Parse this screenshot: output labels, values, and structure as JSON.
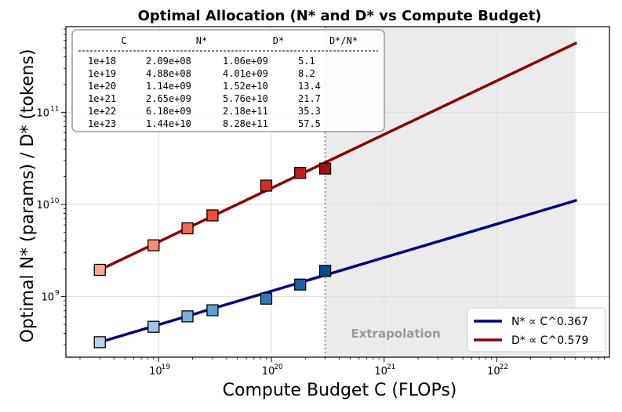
{
  "chart_data": {
    "type": "line",
    "title": "Optimal Allocation (N* and D* vs Compute Budget)",
    "xlabel": "Compute Budget C (FLOPs)",
    "ylabel": "Optimal N* (params) / D* (tokens)",
    "x_scale": "log",
    "y_scale": "log",
    "xlim": [
      1.5e+18,
      1e+23
    ],
    "ylim": [
      220000000.0,
      850000000000.0
    ],
    "x_ticks": [
      1e+19,
      1e+20,
      1e+21,
      1e+22
    ],
    "x_tick_labels": [
      {
        "base": "10",
        "exp": "19"
      },
      {
        "base": "10",
        "exp": "20"
      },
      {
        "base": "10",
        "exp": "21"
      },
      {
        "base": "10",
        "exp": "22"
      }
    ],
    "y_ticks": [
      1000000000.0,
      10000000000.0,
      100000000000.0
    ],
    "y_tick_labels": [
      {
        "base": "10",
        "exp": "9"
      },
      {
        "base": "10",
        "exp": "10"
      },
      {
        "base": "10",
        "exp": "11"
      }
    ],
    "grid": true,
    "legend_position": "bottom-right",
    "extrapolation_region": {
      "x_start": 3e+20,
      "x_end": 5e+22,
      "label": "Extrapolation"
    },
    "series": [
      {
        "name": "N* ∝ C^0.367",
        "color": "#000080",
        "fit_line": {
          "x": [
            3e+18,
            5e+22
          ],
          "y": [
            320000000.0,
            11000000000.0
          ]
        },
        "points": {
          "x": [
            3e+18,
            9e+18,
            1.8e+19,
            3e+19,
            9e+19,
            1.8e+20,
            3e+20
          ],
          "y": [
            320000000.0,
            470000000.0,
            610000000.0,
            710000000.0,
            950000000.0,
            1350000000.0,
            1900000000.0
          ],
          "colors": [
            "#b5d1e8",
            "#9ac7e3",
            "#78b2dc",
            "#5c9fd0",
            "#2f79ba",
            "#1d5fa6",
            "#0a4a90"
          ]
        }
      },
      {
        "name": "D* ∝ C^0.579",
        "color": "#8b0000",
        "fit_line": {
          "x": [
            3e+18,
            5e+22
          ],
          "y": [
            1950000000.0,
            560000000000.0
          ]
        },
        "points": {
          "x": [
            3e+18,
            9e+18,
            1.8e+19,
            3e+19,
            9e+19,
            1.8e+20,
            3e+20
          ],
          "y": [
            1950000000.0,
            3600000000.0,
            5500000000.0,
            7600000000.0,
            16000000000.0,
            22000000000.0,
            24500000000.0
          ],
          "colors": [
            "#fcaa8e",
            "#fb8b6c",
            "#f86a4e",
            "#ef4a36",
            "#d82a24",
            "#c21b1e",
            "#9f0f16"
          ]
        }
      }
    ],
    "table": {
      "headers": [
        "C",
        "N*",
        "D*",
        "D*/N*"
      ],
      "rows": [
        [
          "1e+18",
          "2.09e+08",
          "1.06e+09",
          "5.1"
        ],
        [
          "1e+19",
          "4.88e+08",
          "4.01e+09",
          "8.2"
        ],
        [
          "1e+20",
          "1.14e+09",
          "1.52e+10",
          "13.4"
        ],
        [
          "1e+21",
          "2.65e+09",
          "5.76e+10",
          "21.7"
        ],
        [
          "1e+22",
          "6.18e+09",
          "2.18e+11",
          "35.3"
        ],
        [
          "1e+23",
          "1.44e+10",
          "8.28e+11",
          "57.5"
        ]
      ]
    }
  }
}
